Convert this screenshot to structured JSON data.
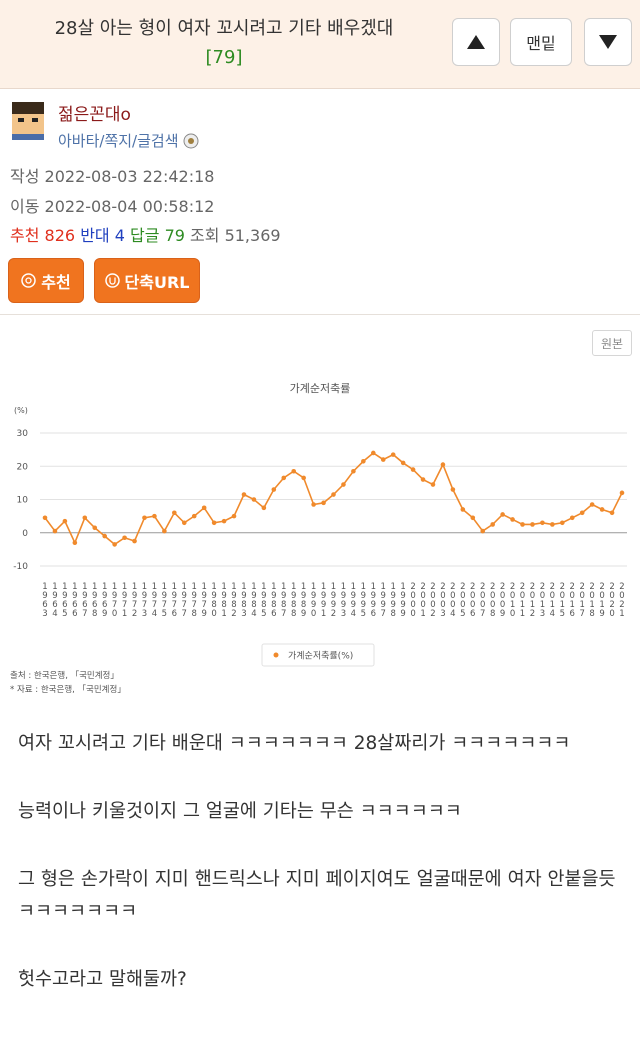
{
  "header": {
    "title": "28살 아는 형이 여자 꼬시려고 기타 배우겠대",
    "reply_count": "[79]",
    "bottom_button": "맨밑"
  },
  "author": {
    "name": "젊은꼰대o",
    "links": "아바타/쪽지/글검색",
    "written_label": "작성",
    "written": "2022-08-03 22:42:18",
    "moved_label": "이동",
    "moved": "2022-08-04 00:58:12"
  },
  "stats": [
    {
      "label": "추천",
      "value": 826
    },
    {
      "label": "반대",
      "value": 4
    },
    {
      "label": "답글",
      "value": 79
    },
    {
      "label": "조회",
      "value": "51,369"
    }
  ],
  "actions": [
    "추천",
    "단축URL"
  ],
  "image_button": "원본",
  "chart_data": {
    "type": "line",
    "title": "가계순저축률",
    "y_label": "(%)",
    "categories": [
      "1963",
      "1964",
      "1965",
      "1966",
      "1967",
      "1968",
      "1969",
      "1970",
      "1971",
      "1972",
      "1973",
      "1974",
      "1975",
      "1976",
      "1977",
      "1978",
      "1979",
      "1980",
      "1981",
      "1982",
      "1983",
      "1984",
      "1985",
      "1986",
      "1987",
      "1988",
      "1989",
      "1990",
      "1991",
      "1992",
      "1993",
      "1994",
      "1995",
      "1996",
      "1997",
      "1998",
      "1999",
      "2000",
      "2001",
      "2002",
      "2003",
      "2004",
      "2005",
      "2006",
      "2007",
      "2008",
      "2009",
      "2010",
      "2011",
      "2012",
      "2013",
      "2014",
      "2015",
      "2016",
      "2017",
      "2018",
      "2019",
      "2020",
      "2021"
    ],
    "series": [
      {
        "name": "가계순저축률(%)",
        "color": "#f08a2c",
        "values": [
          4.5,
          0.5,
          3.5,
          -3,
          4.5,
          1.5,
          -1,
          -3.5,
          -1.5,
          -2.5,
          4.5,
          5,
          0.5,
          6,
          3,
          5,
          7.5,
          3,
          3.5,
          5,
          11.5,
          10,
          7.5,
          13,
          16.5,
          18.5,
          16.5,
          8.5,
          9,
          11.5,
          14.5,
          18.5,
          21.5,
          24,
          22,
          23.5,
          21,
          19,
          16,
          14.5,
          20.5,
          13,
          7,
          4.5,
          0.5,
          2.5,
          5.5,
          4,
          2.5,
          2.5,
          3,
          2.5,
          3,
          4.5,
          6,
          8.5,
          7,
          6,
          12
        ]
      }
    ],
    "ylim": [
      -10,
      30
    ],
    "yticks": [
      -10,
      0,
      10,
      20,
      30
    ],
    "grid": true,
    "notes": [
      "출처 : 한국은행, 「국민계정」",
      "* 자료 : 한국은행, 「국민계정」"
    ]
  },
  "body": [
    "여자 꼬시려고 기타 배운대 ㅋㅋㅋㅋㅋㅋㅋ 28살짜리가 ㅋㅋㅋㅋㅋㅋㅋ",
    "능력이나 키울것이지 그 얼굴에 기타는 무슨 ㅋㅋㅋㅋㅋㅋ",
    "그 형은 손가락이 지미 핸드릭스나 지미 페이지여도 얼굴때문에 여자 안붙을듯 ㅋㅋㅋㅋㅋㅋㅋ",
    "헛수고라고 말해둘까?"
  ]
}
